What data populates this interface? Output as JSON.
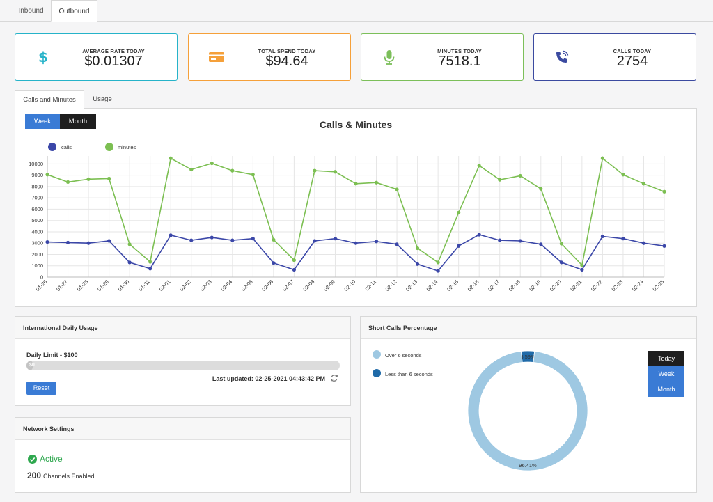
{
  "top_tabs": [
    {
      "label": "Inbound",
      "active": false
    },
    {
      "label": "Outbound",
      "active": true
    }
  ],
  "stats": [
    {
      "label": "AVERAGE RATE TODAY",
      "value": "$0.01307",
      "color": "#26b3c9",
      "icon": "dollar-icon"
    },
    {
      "label": "TOTAL SPEND TODAY",
      "value": "$94.64",
      "color": "#f5a03a",
      "icon": "credit-card-icon"
    },
    {
      "label": "MINUTES TODAY",
      "value": "7518.1",
      "color": "#7cbf5a",
      "icon": "microphone-icon"
    },
    {
      "label": "CALLS TODAY",
      "value": "2754",
      "color": "#3b4aa0",
      "icon": "phone-icon"
    }
  ],
  "chart_tabs": [
    {
      "label": "Calls and Minutes",
      "active": true
    },
    {
      "label": "Usage",
      "active": false
    }
  ],
  "range_toggle": {
    "week": "Week",
    "month": "Month",
    "active": "Week"
  },
  "chart_data": {
    "type": "line",
    "title": "Calls & Minutes",
    "categories": [
      "01-26",
      "01-27",
      "01-28",
      "01-29",
      "01-30",
      "01-31",
      "02-01",
      "02-02",
      "02-03",
      "02-04",
      "02-05",
      "02-06",
      "02-07",
      "02-08",
      "02-09",
      "02-10",
      "02-11",
      "02-12",
      "02-13",
      "02-14",
      "02-15",
      "02-16",
      "02-17",
      "02-18",
      "02-19",
      "02-20",
      "02-21",
      "02-22",
      "02-23",
      "02-24",
      "02-25"
    ],
    "series": [
      {
        "name": "calls",
        "color": "#3b47a8",
        "values": [
          3100,
          3050,
          3000,
          3200,
          1300,
          750,
          3700,
          3250,
          3500,
          3250,
          3400,
          1250,
          650,
          3200,
          3400,
          3000,
          3150,
          2900,
          1150,
          550,
          2750,
          3750,
          3250,
          3200,
          2900,
          1300,
          650,
          3600,
          3400,
          3000,
          2750
        ]
      },
      {
        "name": "minutes",
        "color": "#7cbf52",
        "values": [
          9050,
          8400,
          8650,
          8700,
          2900,
          1350,
          10500,
          9500,
          10050,
          9400,
          9050,
          3300,
          1500,
          9400,
          9300,
          8250,
          8350,
          7750,
          2550,
          1300,
          5700,
          9850,
          8600,
          8950,
          7800,
          2950,
          1050,
          10500,
          9050,
          8250,
          7550
        ]
      }
    ],
    "yticks": [
      0,
      1000,
      2000,
      3000,
      4000,
      5000,
      6000,
      7000,
      8000,
      9000,
      10000
    ],
    "ylim": [
      0,
      10700
    ],
    "grid": true,
    "legend_position": "top-left"
  },
  "intl_usage": {
    "title": "International Daily Usage",
    "limit_label": "Daily Limit - $100",
    "progress_text": "$0",
    "progress_fraction": 0.02,
    "last_updated": "Last updated: 02-25-2021 04:43:42 PM",
    "reset_label": "Reset"
  },
  "network": {
    "title": "Network Settings",
    "status": "Active",
    "channels_count": "200",
    "channels_label": "Channels Enabled"
  },
  "short_calls": {
    "title": "Short Calls Percentage",
    "legend": [
      {
        "label": "Over 6 seconds",
        "color": "#9ec8e2"
      },
      {
        "label": "Less than 6 seconds",
        "color": "#1f6aa8"
      }
    ],
    "slices": [
      {
        "label": "96.41%",
        "value": 96.41,
        "color": "#9ec8e2"
      },
      {
        "label": "3.59%",
        "value": 3.59,
        "color": "#1f6aa8"
      }
    ],
    "periods": [
      {
        "label": "Today",
        "active": true
      },
      {
        "label": "Week",
        "active": false
      },
      {
        "label": "Month",
        "active": false
      }
    ]
  }
}
